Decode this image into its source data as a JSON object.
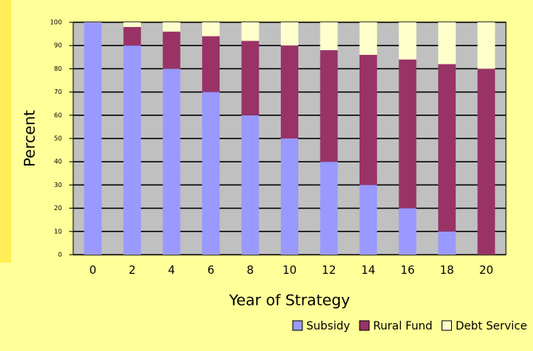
{
  "chart_data": {
    "type": "stacked_bar",
    "x_label": "Year of Strategy",
    "y_label": "Percent",
    "categories": [
      "0",
      "2",
      "4",
      "6",
      "8",
      "10",
      "12",
      "14",
      "16",
      "18",
      "20"
    ],
    "series": [
      {
        "name": "Subsidy",
        "color": "#9999ff",
        "values": [
          100,
          90,
          80,
          70,
          60,
          50,
          40,
          30,
          20,
          10,
          0
        ]
      },
      {
        "name": "Rural Fund",
        "color": "#993366",
        "values": [
          0,
          8,
          16,
          24,
          32,
          40,
          48,
          56,
          64,
          72,
          80
        ]
      },
      {
        "name": "Debt Service",
        "color": "#ffffcc",
        "values": [
          0,
          2,
          4,
          6,
          8,
          10,
          12,
          14,
          16,
          18,
          20
        ]
      }
    ],
    "ylim": [
      0,
      100
    ],
    "yticks": [
      0,
      10,
      20,
      30,
      40,
      50,
      60,
      70,
      80,
      90,
      100
    ],
    "grid": true
  }
}
